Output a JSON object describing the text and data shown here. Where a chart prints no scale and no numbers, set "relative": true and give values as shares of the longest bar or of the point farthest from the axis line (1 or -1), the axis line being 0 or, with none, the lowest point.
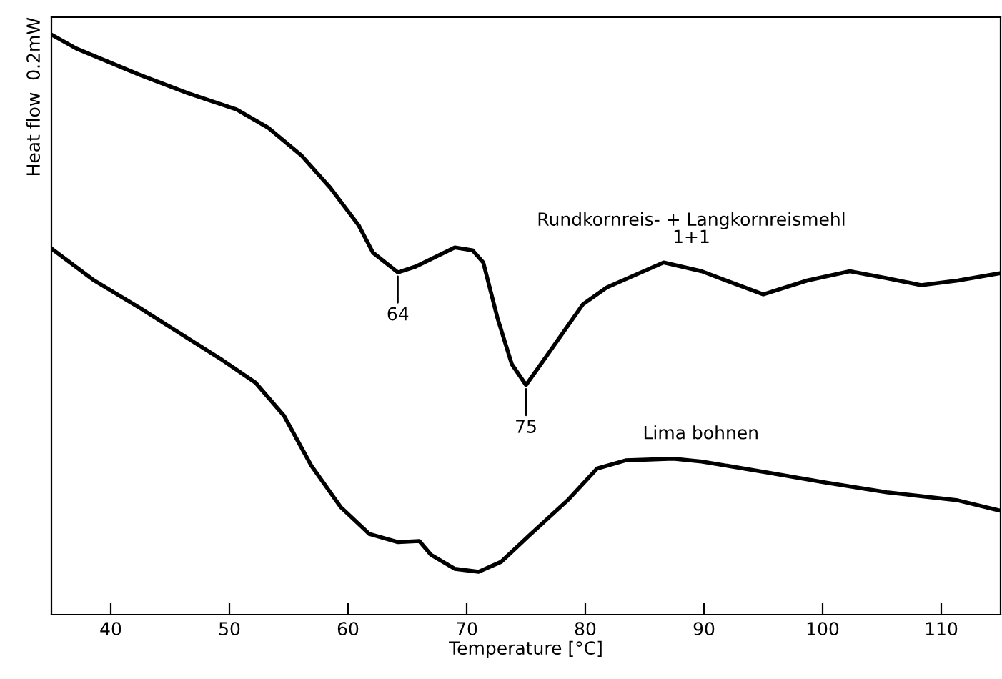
{
  "chart_data": {
    "type": "line",
    "xlabel": "Temperature [°C]",
    "ylabel": "Heat flow  0.2mW",
    "relative": true,
    "xlim": [
      35,
      115
    ],
    "xticks": [
      40,
      50,
      60,
      70,
      80,
      90,
      100,
      110
    ],
    "grid": false,
    "legend": false,
    "marker": "none",
    "line_style": "solid",
    "series": [
      {
        "name": "Rundkornreis- + Langkornreismehl\n1+1",
        "color": "#000000",
        "x": [
          35.0,
          37.1,
          42.5,
          46.5,
          50.6,
          53.3,
          56.1,
          58.5,
          60.9,
          62.1,
          64.2,
          65.7,
          69.0,
          70.5,
          71.4,
          72.6,
          73.8,
          75.0,
          76.5,
          79.8,
          81.8,
          86.6,
          89.8,
          95.0,
          98.7,
          102.3,
          105.4,
          108.3,
          111.4,
          114.8
        ],
        "values": [
          1.0,
          0.976,
          0.93,
          0.899,
          0.871,
          0.839,
          0.791,
          0.736,
          0.671,
          0.624,
          0.59,
          0.6,
          0.633,
          0.628,
          0.607,
          0.511,
          0.432,
          0.396,
          0.439,
          0.535,
          0.564,
          0.607,
          0.592,
          0.552,
          0.576,
          0.592,
          0.58,
          0.568,
          0.576,
          0.588
        ]
      },
      {
        "name": "Lima bohnen",
        "color": "#000000",
        "x": [
          35.0,
          38.6,
          42.5,
          49.4,
          52.2,
          54.6,
          56.9,
          59.4,
          61.8,
          64.2,
          66.0,
          67.0,
          69.0,
          71.0,
          72.9,
          75.3,
          78.6,
          81.0,
          83.4,
          87.4,
          89.8,
          95.4,
          100.2,
          105.4,
          111.4,
          114.8
        ],
        "values": [
          0.631,
          0.576,
          0.528,
          0.439,
          0.4,
          0.343,
          0.257,
          0.185,
          0.139,
          0.125,
          0.127,
          0.103,
          0.079,
          0.074,
          0.091,
          0.137,
          0.199,
          0.252,
          0.266,
          0.269,
          0.264,
          0.245,
          0.228,
          0.211,
          0.197,
          0.18
        ]
      }
    ],
    "annotations": [
      {
        "text": "64",
        "x": 64.2,
        "y": 0.59
      },
      {
        "text": "75",
        "x": 75.0,
        "y": 0.396
      }
    ]
  }
}
